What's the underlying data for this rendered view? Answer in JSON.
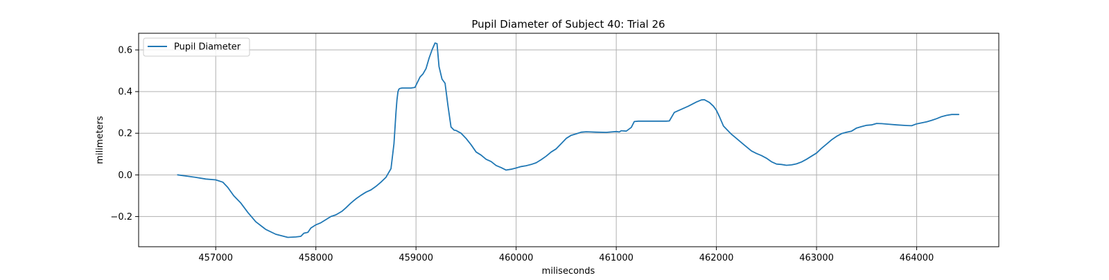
{
  "chart_data": {
    "type": "line",
    "title": "Pupil Diameter of Subject 40: Trial 26",
    "xlabel": "miliseconds",
    "ylabel": "milimeters",
    "xlim": [
      456230,
      464820
    ],
    "ylim": [
      -0.345,
      0.68
    ],
    "grid": true,
    "legend_position": "top-left",
    "x_ticks": [
      457000,
      458000,
      459000,
      460000,
      461000,
      462000,
      463000,
      464000
    ],
    "x_tick_labels": [
      "457000",
      "458000",
      "459000",
      "460000",
      "461000",
      "462000",
      "463000",
      "464000"
    ],
    "y_ticks": [
      -0.2,
      0.0,
      0.2,
      0.4,
      0.6
    ],
    "y_tick_labels": [
      "−0.2",
      "0.0",
      "0.2",
      "0.4",
      "0.6"
    ],
    "series": [
      {
        "name": "Pupil Diameter",
        "color": "#1f77b4",
        "x": [
          456620,
          456800,
          456900,
          457000,
          457070,
          457120,
          457180,
          457250,
          457320,
          457400,
          457500,
          457600,
          457680,
          457720,
          457800,
          457850,
          457880,
          457920,
          457950,
          458000,
          458050,
          458100,
          458150,
          458200,
          458260,
          458300,
          458350,
          458400,
          458450,
          458500,
          458550,
          458600,
          458650,
          458700,
          458750,
          458780,
          458800,
          458810,
          458820,
          458830,
          458840,
          458860,
          458900,
          458950,
          458990,
          459010,
          459040,
          459070,
          459100,
          459130,
          459160,
          459190,
          459210,
          459230,
          459260,
          459290,
          459320,
          459350,
          459380,
          459400,
          459450,
          459500,
          459550,
          459600,
          459650,
          459700,
          459750,
          459800,
          459850,
          459900,
          459950,
          460000,
          460050,
          460100,
          460150,
          460200,
          460250,
          460300,
          460350,
          460400,
          460450,
          460500,
          460550,
          460600,
          460650,
          460700,
          460750,
          460800,
          460900,
          460950,
          461000,
          461030,
          461050,
          461100,
          461150,
          461180,
          461220,
          461300,
          461400,
          461500,
          461530,
          461580,
          461650,
          461720,
          461800,
          461850,
          461880,
          461930,
          461970,
          462000,
          462030,
          462070,
          462100,
          462150,
          462200,
          462250,
          462300,
          462350,
          462400,
          462450,
          462500,
          462550,
          462600,
          462650,
          462700,
          462750,
          462800,
          462850,
          462900,
          462950,
          463000,
          463050,
          463100,
          463150,
          463200,
          463250,
          463300,
          463350,
          463400,
          463450,
          463500,
          463550,
          463600,
          463650,
          463700,
          463800,
          463900,
          463950,
          464000,
          464050,
          464100,
          464150,
          464200,
          464250,
          464300,
          464350,
          464420
        ],
        "y": [
          0.0,
          -0.012,
          -0.02,
          -0.024,
          -0.035,
          -0.06,
          -0.1,
          -0.135,
          -0.18,
          -0.225,
          -0.262,
          -0.285,
          -0.295,
          -0.3,
          -0.298,
          -0.295,
          -0.28,
          -0.276,
          -0.255,
          -0.24,
          -0.23,
          -0.215,
          -0.2,
          -0.192,
          -0.175,
          -0.158,
          -0.135,
          -0.115,
          -0.098,
          -0.083,
          -0.072,
          -0.055,
          -0.035,
          -0.012,
          0.03,
          0.15,
          0.3,
          0.36,
          0.4,
          0.412,
          0.415,
          0.417,
          0.417,
          0.417,
          0.42,
          0.44,
          0.47,
          0.485,
          0.51,
          0.56,
          0.6,
          0.633,
          0.63,
          0.52,
          0.46,
          0.44,
          0.33,
          0.23,
          0.215,
          0.213,
          0.2,
          0.175,
          0.145,
          0.11,
          0.095,
          0.075,
          0.064,
          0.045,
          0.035,
          0.023,
          0.027,
          0.033,
          0.04,
          0.044,
          0.05,
          0.058,
          0.073,
          0.09,
          0.11,
          0.125,
          0.15,
          0.175,
          0.19,
          0.197,
          0.205,
          0.207,
          0.206,
          0.205,
          0.204,
          0.206,
          0.208,
          0.206,
          0.212,
          0.21,
          0.228,
          0.256,
          0.258,
          0.258,
          0.258,
          0.258,
          0.259,
          0.3,
          0.315,
          0.33,
          0.35,
          0.36,
          0.361,
          0.348,
          0.33,
          0.31,
          0.28,
          0.235,
          0.22,
          0.195,
          0.175,
          0.155,
          0.135,
          0.115,
          0.103,
          0.093,
          0.08,
          0.063,
          0.052,
          0.05,
          0.046,
          0.048,
          0.053,
          0.062,
          0.075,
          0.09,
          0.105,
          0.128,
          0.148,
          0.168,
          0.185,
          0.198,
          0.205,
          0.21,
          0.225,
          0.232,
          0.238,
          0.24,
          0.247,
          0.246,
          0.244,
          0.24,
          0.237,
          0.236,
          0.245,
          0.25,
          0.255,
          0.262,
          0.27,
          0.28,
          0.286,
          0.29,
          0.29
        ]
      }
    ]
  }
}
